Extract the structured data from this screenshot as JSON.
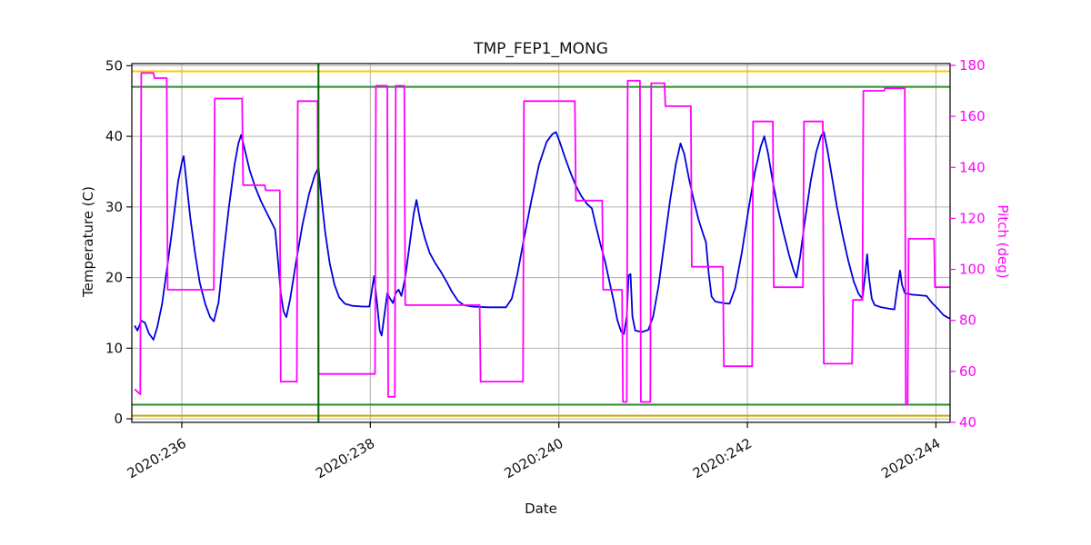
{
  "chart_data": {
    "type": "line",
    "title": "TMP_FEP1_MONG",
    "xlabel": "Date",
    "grid": true,
    "grid_color": "#b0b0b0",
    "xlim": [
      235.47,
      244.15
    ],
    "x_ticks": [
      236,
      238,
      240,
      242,
      244
    ],
    "x_tick_labels": [
      "2020:236",
      "2020:238",
      "2020:240",
      "2020:242",
      "2020:244"
    ],
    "left_axis": {
      "label": "Temperature (C)",
      "ticks": [
        0,
        10,
        20,
        30,
        40,
        50
      ],
      "lim": [
        -0.5,
        50.3
      ],
      "color": "#111111"
    },
    "right_axis": {
      "label": "Pitch (deg)",
      "ticks": [
        40,
        60,
        80,
        100,
        120,
        140,
        160,
        180
      ],
      "lim": [
        40,
        180.7
      ],
      "color": "#ff00ff"
    },
    "limit_lines": [
      {
        "name": "upper-caution-line",
        "orientation": "h",
        "value": 49.2,
        "color": "#ffc800",
        "width": 2
      },
      {
        "name": "upper-warning-line",
        "orientation": "h",
        "value": 47.0,
        "color": "#2e8b2e",
        "width": 2
      },
      {
        "name": "lower-warning-line",
        "orientation": "h",
        "value": 2.0,
        "color": "#2e8b2e",
        "width": 2
      },
      {
        "name": "lower-caution-line",
        "orientation": "h",
        "value": 0.45,
        "color": "#c8a800",
        "width": 2
      },
      {
        "name": "time-marker-line",
        "orientation": "v",
        "value": 237.45,
        "color": "#006400",
        "width": 2
      }
    ],
    "series": [
      {
        "name": "temperature",
        "axis": "left",
        "color": "#0000dd",
        "width": 1.8,
        "points": [
          [
            235.5,
            13.2
          ],
          [
            235.53,
            12.5
          ],
          [
            235.57,
            13.9
          ],
          [
            235.61,
            13.6
          ],
          [
            235.65,
            12.1
          ],
          [
            235.7,
            11.2
          ],
          [
            235.74,
            13.0
          ],
          [
            235.79,
            16.2
          ],
          [
            235.84,
            21.0
          ],
          [
            235.9,
            27.0
          ],
          [
            235.96,
            33.5
          ],
          [
            236.0,
            36.3
          ],
          [
            236.02,
            37.2
          ],
          [
            236.05,
            33.5
          ],
          [
            236.09,
            28.5
          ],
          [
            236.14,
            23.5
          ],
          [
            236.19,
            19.3
          ],
          [
            236.25,
            16.2
          ],
          [
            236.3,
            14.4
          ],
          [
            236.34,
            13.8
          ],
          [
            236.39,
            16.5
          ],
          [
            236.44,
            23.0
          ],
          [
            236.5,
            30.0
          ],
          [
            236.56,
            36.0
          ],
          [
            236.6,
            39.0
          ],
          [
            236.63,
            40.2
          ],
          [
            236.67,
            38.0
          ],
          [
            236.72,
            35.2
          ],
          [
            236.78,
            32.8
          ],
          [
            236.84,
            30.8
          ],
          [
            236.9,
            29.2
          ],
          [
            236.96,
            27.6
          ],
          [
            236.99,
            26.8
          ],
          [
            237.02,
            22.5
          ],
          [
            237.05,
            17.8
          ],
          [
            237.08,
            15.2
          ],
          [
            237.11,
            14.4
          ],
          [
            237.15,
            17.0
          ],
          [
            237.21,
            22.0
          ],
          [
            237.28,
            27.5
          ],
          [
            237.35,
            31.8
          ],
          [
            237.41,
            34.5
          ],
          [
            237.45,
            35.6
          ],
          [
            237.48,
            31.5
          ],
          [
            237.52,
            26.5
          ],
          [
            237.57,
            22.0
          ],
          [
            237.62,
            19.0
          ],
          [
            237.67,
            17.2
          ],
          [
            237.73,
            16.3
          ],
          [
            237.81,
            16.0
          ],
          [
            237.92,
            15.9
          ],
          [
            237.99,
            15.9
          ],
          [
            238.02,
            18.5
          ],
          [
            238.04,
            20.2
          ],
          [
            238.07,
            16.5
          ],
          [
            238.1,
            12.5
          ],
          [
            238.12,
            11.8
          ],
          [
            238.15,
            14.8
          ],
          [
            238.18,
            17.8
          ],
          [
            238.21,
            17.0
          ],
          [
            238.24,
            16.4
          ],
          [
            238.27,
            17.8
          ],
          [
            238.3,
            18.3
          ],
          [
            238.33,
            17.4
          ],
          [
            238.37,
            20.0
          ],
          [
            238.42,
            25.0
          ],
          [
            238.46,
            29.0
          ],
          [
            238.49,
            31.0
          ],
          [
            238.53,
            28.0
          ],
          [
            238.58,
            25.5
          ],
          [
            238.63,
            23.5
          ],
          [
            238.69,
            22.0
          ],
          [
            238.75,
            20.8
          ],
          [
            238.81,
            19.4
          ],
          [
            238.87,
            17.9
          ],
          [
            238.93,
            16.7
          ],
          [
            238.99,
            16.1
          ],
          [
            239.08,
            15.9
          ],
          [
            239.25,
            15.8
          ],
          [
            239.44,
            15.8
          ],
          [
            239.5,
            17.0
          ],
          [
            239.56,
            20.5
          ],
          [
            239.63,
            25.5
          ],
          [
            239.71,
            31.0
          ],
          [
            239.79,
            36.0
          ],
          [
            239.87,
            39.2
          ],
          [
            239.93,
            40.3
          ],
          [
            239.97,
            40.6
          ],
          [
            240.01,
            39.2
          ],
          [
            240.06,
            37.2
          ],
          [
            240.12,
            35.0
          ],
          [
            240.18,
            33.0
          ],
          [
            240.24,
            31.5
          ],
          [
            240.3,
            30.4
          ],
          [
            240.35,
            29.8
          ],
          [
            240.39,
            27.5
          ],
          [
            240.44,
            24.8
          ],
          [
            240.49,
            22.3
          ],
          [
            240.53,
            19.8
          ],
          [
            240.58,
            16.8
          ],
          [
            240.62,
            14.0
          ],
          [
            240.66,
            12.4
          ],
          [
            240.69,
            12.0
          ],
          [
            240.72,
            14.5
          ],
          [
            240.74,
            20.3
          ],
          [
            240.76,
            20.5
          ],
          [
            240.78,
            14.5
          ],
          [
            240.81,
            12.5
          ],
          [
            240.88,
            12.3
          ],
          [
            240.95,
            12.6
          ],
          [
            241.0,
            14.5
          ],
          [
            241.06,
            19.0
          ],
          [
            241.12,
            25.0
          ],
          [
            241.18,
            31.0
          ],
          [
            241.24,
            36.0
          ],
          [
            241.29,
            39.0
          ],
          [
            241.33,
            37.5
          ],
          [
            241.38,
            34.0
          ],
          [
            241.43,
            31.0
          ],
          [
            241.48,
            28.3
          ],
          [
            241.53,
            26.2
          ],
          [
            241.56,
            25.0
          ],
          [
            241.59,
            20.5
          ],
          [
            241.62,
            17.3
          ],
          [
            241.66,
            16.6
          ],
          [
            241.74,
            16.4
          ],
          [
            241.81,
            16.3
          ],
          [
            241.87,
            18.5
          ],
          [
            241.94,
            23.5
          ],
          [
            242.01,
            29.5
          ],
          [
            242.08,
            35.0
          ],
          [
            242.14,
            38.5
          ],
          [
            242.18,
            40.0
          ],
          [
            242.22,
            37.5
          ],
          [
            242.27,
            33.5
          ],
          [
            242.32,
            30.0
          ],
          [
            242.38,
            26.5
          ],
          [
            242.44,
            23.3
          ],
          [
            242.49,
            21.0
          ],
          [
            242.52,
            20.0
          ],
          [
            242.56,
            23.0
          ],
          [
            242.61,
            28.0
          ],
          [
            242.67,
            33.5
          ],
          [
            242.73,
            37.8
          ],
          [
            242.78,
            40.0
          ],
          [
            242.81,
            40.6
          ],
          [
            242.85,
            38.0
          ],
          [
            242.9,
            34.0
          ],
          [
            242.95,
            30.0
          ],
          [
            243.01,
            26.0
          ],
          [
            243.07,
            22.4
          ],
          [
            243.13,
            19.4
          ],
          [
            243.18,
            17.7
          ],
          [
            243.22,
            17.0
          ],
          [
            243.25,
            20.5
          ],
          [
            243.27,
            23.3
          ],
          [
            243.29,
            20.0
          ],
          [
            243.32,
            17.0
          ],
          [
            243.35,
            16.1
          ],
          [
            243.42,
            15.8
          ],
          [
            243.5,
            15.6
          ],
          [
            243.56,
            15.5
          ],
          [
            243.59,
            18.5
          ],
          [
            243.62,
            21.0
          ],
          [
            243.64,
            19.0
          ],
          [
            243.67,
            17.8
          ],
          [
            243.74,
            17.6
          ],
          [
            243.82,
            17.5
          ],
          [
            243.9,
            17.4
          ],
          [
            243.96,
            16.4
          ],
          [
            244.02,
            15.6
          ],
          [
            244.08,
            14.7
          ],
          [
            244.13,
            14.3
          ],
          [
            244.15,
            14.2
          ]
        ]
      },
      {
        "name": "pitch",
        "axis": "right",
        "color": "#ff00ff",
        "width": 1.8,
        "points": [
          [
            235.5,
            53
          ],
          [
            235.56,
            51
          ],
          [
            235.57,
            177
          ],
          [
            235.7,
            177
          ],
          [
            235.71,
            175
          ],
          [
            235.84,
            175
          ],
          [
            235.85,
            92
          ],
          [
            236.34,
            92
          ],
          [
            236.35,
            167
          ],
          [
            236.64,
            167
          ],
          [
            236.65,
            133
          ],
          [
            236.88,
            133
          ],
          [
            236.89,
            131
          ],
          [
            237.04,
            131
          ],
          [
            237.05,
            56
          ],
          [
            237.22,
            56
          ],
          [
            237.23,
            166
          ],
          [
            237.44,
            166
          ],
          [
            237.45,
            59
          ],
          [
            238.05,
            59
          ],
          [
            238.06,
            172
          ],
          [
            238.18,
            172
          ],
          [
            238.19,
            50
          ],
          [
            238.26,
            50
          ],
          [
            238.27,
            172
          ],
          [
            238.36,
            172
          ],
          [
            238.37,
            86
          ],
          [
            239.16,
            86
          ],
          [
            239.17,
            56
          ],
          [
            239.62,
            56
          ],
          [
            239.63,
            166
          ],
          [
            240.17,
            166
          ],
          [
            240.18,
            127
          ],
          [
            240.46,
            127
          ],
          [
            240.47,
            92
          ],
          [
            240.67,
            92
          ],
          [
            240.68,
            48
          ],
          [
            240.72,
            48
          ],
          [
            240.73,
            174
          ],
          [
            240.86,
            174
          ],
          [
            240.87,
            48
          ],
          [
            240.97,
            48
          ],
          [
            240.98,
            173
          ],
          [
            241.12,
            173
          ],
          [
            241.13,
            164
          ],
          [
            241.4,
            164
          ],
          [
            241.41,
            101
          ],
          [
            241.74,
            101
          ],
          [
            241.75,
            62
          ],
          [
            242.05,
            62
          ],
          [
            242.06,
            158
          ],
          [
            242.27,
            158
          ],
          [
            242.28,
            93
          ],
          [
            242.59,
            93
          ],
          [
            242.6,
            158
          ],
          [
            242.8,
            158
          ],
          [
            242.81,
            63
          ],
          [
            243.11,
            63
          ],
          [
            243.12,
            88
          ],
          [
            243.22,
            88
          ],
          [
            243.23,
            170
          ],
          [
            243.45,
            170
          ],
          [
            243.46,
            171
          ],
          [
            243.67,
            171
          ],
          [
            243.68,
            47
          ],
          [
            243.7,
            47
          ],
          [
            243.71,
            112
          ],
          [
            243.98,
            112
          ],
          [
            243.99,
            93
          ],
          [
            244.15,
            93
          ]
        ]
      }
    ]
  }
}
